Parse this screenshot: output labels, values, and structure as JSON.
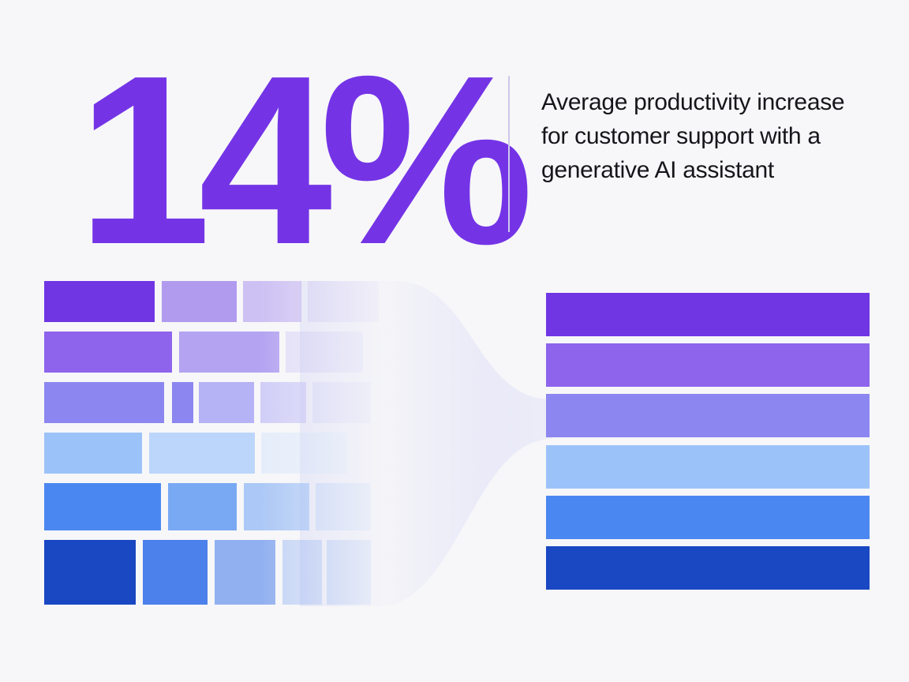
{
  "stat": {
    "value": "14%",
    "color": "#7434e6"
  },
  "caption": {
    "text": "Average productivity increase for customer support with a generative AI assistant"
  },
  "divider_color": "#cfc8ea",
  "palette": {
    "rows": [
      "#7036e4",
      "#8e64ec",
      "#8c86f0",
      "#9cc3f9",
      "#4b87f0",
      "#1a47c2"
    ],
    "light_rows": [
      "#b09bee",
      "#b3a3f1",
      "#b5b2f5",
      "#bcd6fb",
      "#7aa9f4",
      "#4c80ea"
    ],
    "stream": "#e6e8f7"
  }
}
